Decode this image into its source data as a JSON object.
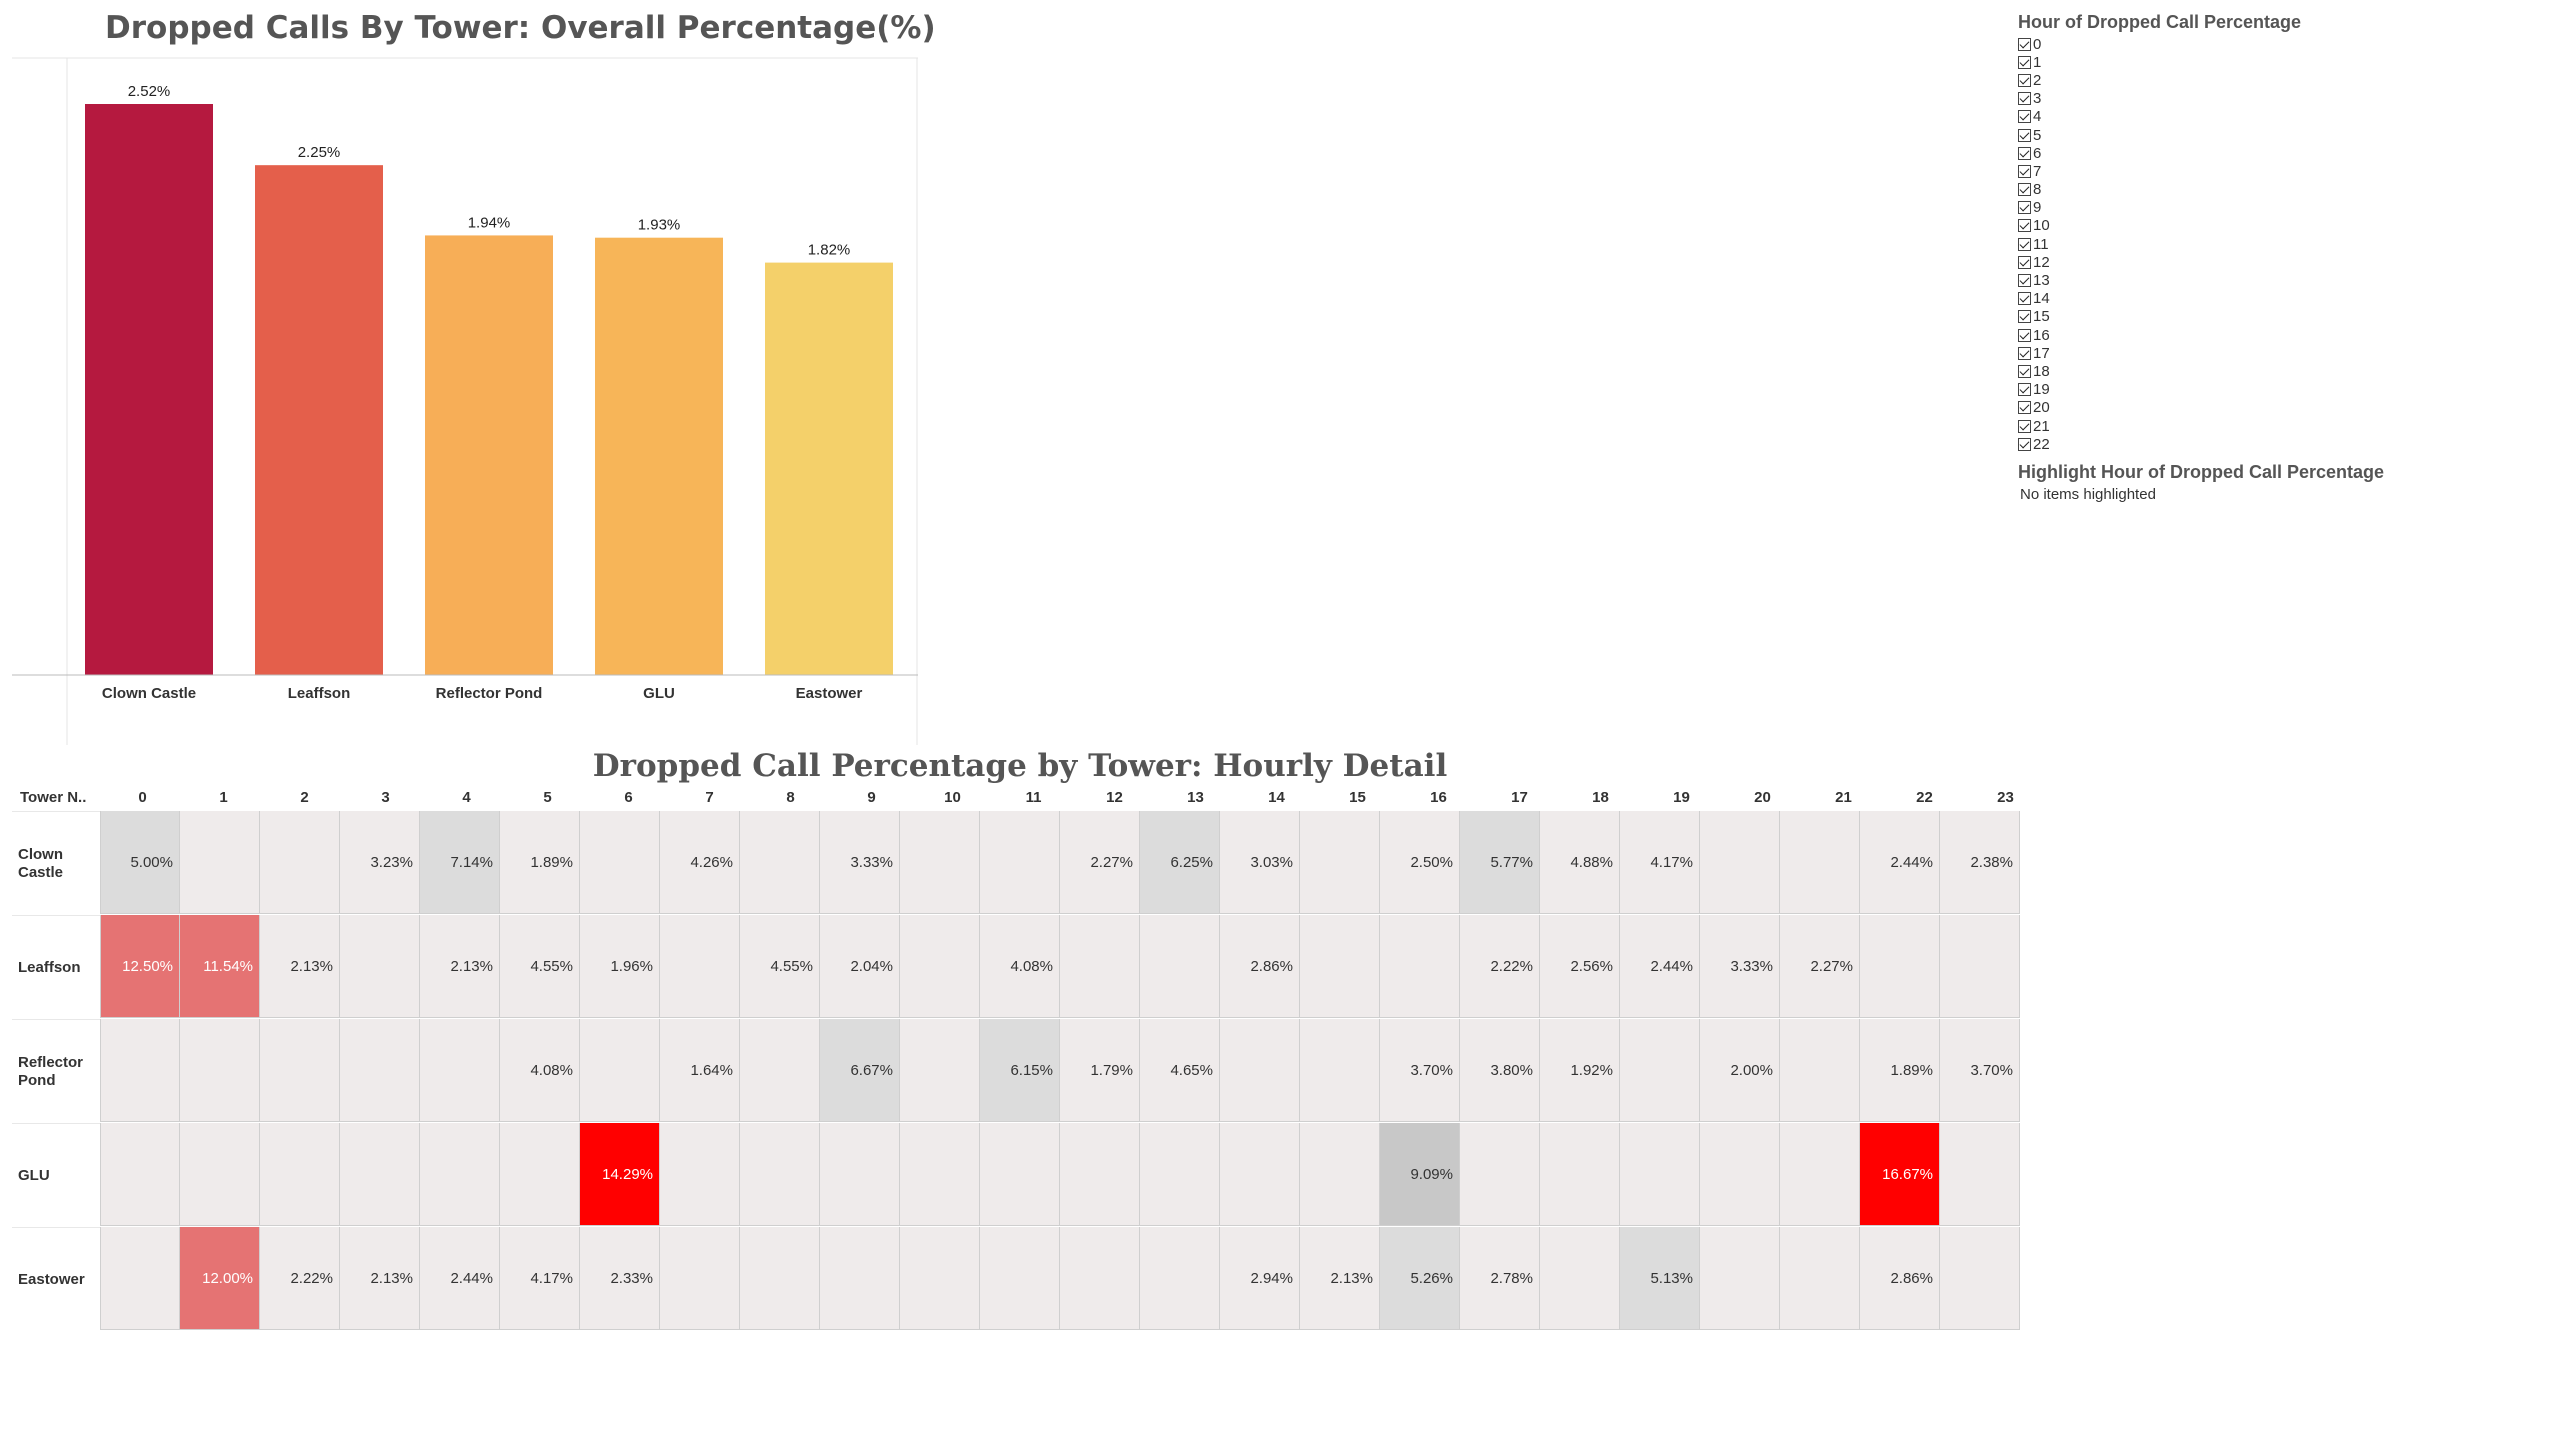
{
  "bar_chart": {
    "title": "Dropped Calls By Tower: Overall Percentage(%)"
  },
  "heatmap": {
    "title": "Dropped Call Percentage by Tower: Hourly Detail",
    "row_header": "Tower N.."
  },
  "filter": {
    "title": "Hour of Dropped Call Percentage",
    "items": [
      "0",
      "1",
      "2",
      "3",
      "4",
      "5",
      "6",
      "7",
      "8",
      "9",
      "10",
      "11",
      "12",
      "13",
      "14",
      "15",
      "16",
      "17",
      "18",
      "19",
      "20",
      "21",
      "22"
    ]
  },
  "highlight": {
    "title": "Highlight Hour of Dropped Call Percentage",
    "status": "No items highlighted"
  },
  "chart_data": [
    {
      "type": "bar",
      "title": "Dropped Calls By Tower: Overall Percentage(%)",
      "categories": [
        "Clown Castle",
        "Leaffson",
        "Reflector Pond",
        "GLU",
        "Eastower"
      ],
      "values": [
        2.52,
        2.25,
        1.94,
        1.93,
        1.82
      ],
      "labels": [
        "2.52%",
        "2.25%",
        "1.94%",
        "1.93%",
        "1.82%"
      ],
      "colors": [
        "#b5193f",
        "#e45f4b",
        "#f7ae57",
        "#f7b558",
        "#f4d06a"
      ],
      "ylim": [
        0,
        2.52
      ],
      "grid": false,
      "xlabel": "",
      "ylabel": ""
    },
    {
      "type": "heatmap",
      "title": "Dropped Call Percentage by Tower: Hourly Detail",
      "x": [
        "0",
        "1",
        "2",
        "3",
        "4",
        "5",
        "6",
        "7",
        "8",
        "9",
        "10",
        "11",
        "12",
        "13",
        "14",
        "15",
        "16",
        "17",
        "18",
        "19",
        "20",
        "21",
        "22",
        "23"
      ],
      "y": [
        "Clown Castle",
        "Leaffson",
        "Reflector Pond",
        "GLU",
        "Eastower"
      ],
      "values": [
        [
          5.0,
          null,
          null,
          3.23,
          7.14,
          1.89,
          null,
          4.26,
          null,
          3.33,
          null,
          null,
          2.27,
          6.25,
          3.03,
          null,
          2.5,
          5.77,
          4.88,
          4.17,
          null,
          null,
          2.44,
          2.38
        ],
        [
          12.5,
          11.54,
          2.13,
          null,
          2.13,
          4.55,
          1.96,
          null,
          4.55,
          2.04,
          null,
          4.08,
          null,
          null,
          2.86,
          null,
          null,
          2.22,
          2.56,
          2.44,
          3.33,
          2.27,
          null,
          null
        ],
        [
          null,
          null,
          null,
          null,
          null,
          4.08,
          null,
          1.64,
          null,
          6.67,
          null,
          6.15,
          1.79,
          4.65,
          null,
          null,
          3.7,
          3.8,
          1.92,
          null,
          2.0,
          null,
          1.89,
          3.7
        ],
        [
          null,
          null,
          null,
          null,
          null,
          null,
          14.29,
          null,
          null,
          null,
          null,
          null,
          null,
          null,
          null,
          null,
          9.09,
          null,
          null,
          null,
          null,
          null,
          16.67,
          null
        ],
        [
          null,
          12.0,
          2.22,
          2.13,
          2.44,
          4.17,
          2.33,
          null,
          null,
          null,
          null,
          null,
          null,
          null,
          2.94,
          2.13,
          5.26,
          2.78,
          null,
          5.13,
          null,
          null,
          2.86,
          null
        ]
      ],
      "colors": {
        "default": "#efebeb",
        "elevated": "#dcdcdc",
        "high": "#c8c8c8",
        "severe": "#e57373",
        "critical": "#ff0000"
      }
    }
  ]
}
